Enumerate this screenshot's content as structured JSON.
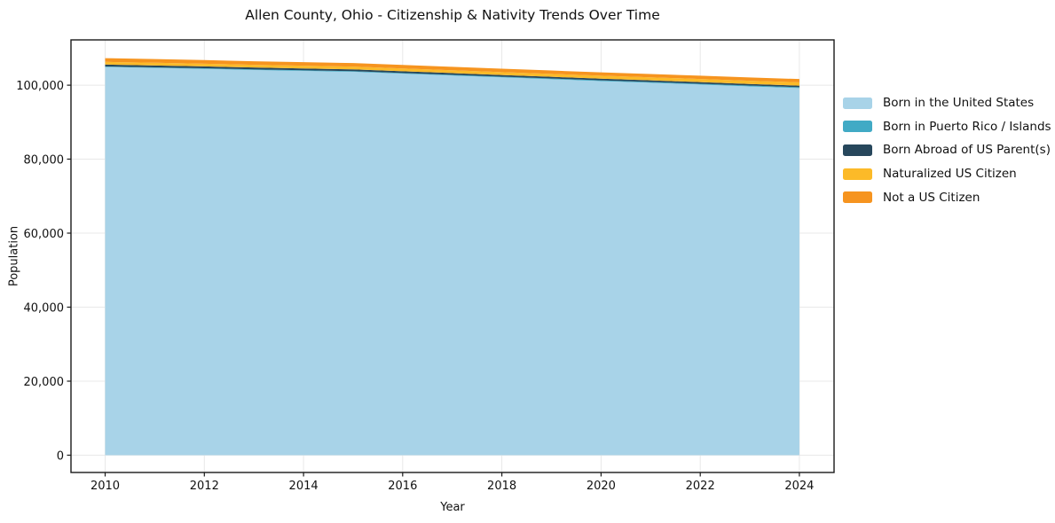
{
  "figure": {
    "title": "Allen County, Ohio - Citizenship & Nativity Trends Over Time",
    "xlabel": "Year",
    "ylabel": "Population"
  },
  "chart_data": {
    "type": "area",
    "stacked": true,
    "title": "Allen County, Ohio - Citizenship & Nativity Trends Over Time",
    "xlabel": "Year",
    "ylabel": "Population",
    "grid": true,
    "legend_position": "right-outside",
    "x": [
      2010,
      2011,
      2012,
      2013,
      2014,
      2015,
      2016,
      2017,
      2018,
      2019,
      2020,
      2021,
      2022,
      2023,
      2024
    ],
    "series": [
      {
        "name": "Born in the United States",
        "color": "#a8d3e8",
        "values": [
          104900,
          104650,
          104400,
          104100,
          103850,
          103600,
          103100,
          102600,
          102100,
          101600,
          101100,
          100650,
          100150,
          99650,
          99200
        ]
      },
      {
        "name": "Born in Puerto Rico / Islands",
        "color": "#41aac5",
        "values": [
          150,
          160,
          160,
          170,
          170,
          180,
          180,
          190,
          190,
          200,
          200,
          210,
          220,
          230,
          240
        ]
      },
      {
        "name": "Born Abroad of US Parent(s)",
        "color": "#27475c",
        "values": [
          520,
          510,
          500,
          490,
          490,
          480,
          470,
          470,
          460,
          450,
          450,
          440,
          440,
          430,
          430
        ]
      },
      {
        "name": "Naturalized US Citizen",
        "color": "#fcba28",
        "values": [
          720,
          730,
          740,
          730,
          740,
          750,
          760,
          770,
          780,
          790,
          800,
          820,
          850,
          880,
          900
        ]
      },
      {
        "name": "Not a US Citizen",
        "color": "#f6941f",
        "values": [
          1000,
          990,
          980,
          970,
          960,
          950,
          940,
          930,
          920,
          910,
          900,
          890,
          890,
          880,
          880
        ]
      }
    ],
    "xticks": [
      2010,
      2012,
      2014,
      2016,
      2018,
      2020,
      2022,
      2024
    ],
    "xtick_labels": [
      "2010",
      "2012",
      "2014",
      "2016",
      "2018",
      "2020",
      "2022",
      "2024"
    ],
    "yticks": [
      0,
      20000,
      40000,
      60000,
      80000,
      100000
    ],
    "ytick_labels": [
      "0",
      "20,000",
      "40,000",
      "60,000",
      "80,000",
      "100,000"
    ],
    "xlim": [
      2009.311,
      2024.699
    ],
    "ylim": [
      -4670,
      112230
    ]
  }
}
